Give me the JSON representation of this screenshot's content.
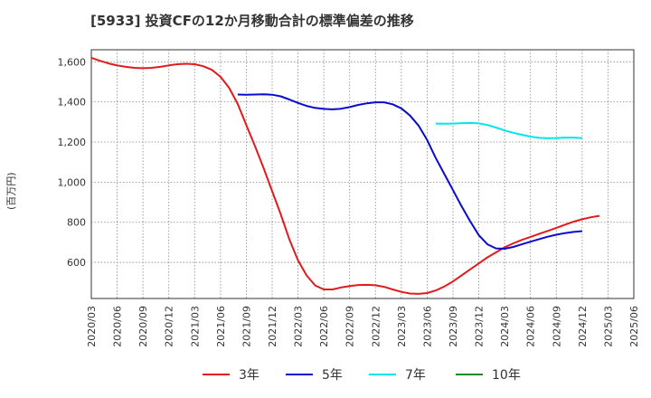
{
  "chart_data": {
    "type": "line",
    "title": "[5933]  投資CFの12か月移動合計の標準偏差の推移",
    "ylabel": "(百万円)",
    "xlabel": "",
    "ylim": [
      420,
      1660
    ],
    "yticks": [
      600,
      800,
      1000,
      1200,
      1400,
      1600
    ],
    "ytick_labels": [
      "600",
      "800",
      "1,000",
      "1,200",
      "1,400",
      "1,600"
    ],
    "x_categories": [
      "2020/03",
      "2020/06",
      "2020/09",
      "2020/12",
      "2021/03",
      "2021/06",
      "2021/09",
      "2021/12",
      "2022/03",
      "2022/06",
      "2022/09",
      "2022/12",
      "2023/03",
      "2023/06",
      "2023/09",
      "2023/12",
      "2024/03",
      "2024/06",
      "2024/09",
      "2024/12",
      "2025/03",
      "2025/06"
    ],
    "grid": true,
    "legend_position": "bottom",
    "series": [
      {
        "name": "3年",
        "color": "#e31a1c",
        "points": [
          {
            "x": "2020/03",
            "y": 1620
          },
          {
            "x": "2020/04",
            "y": 1605
          },
          {
            "x": "2020/05",
            "y": 1592
          },
          {
            "x": "2020/06",
            "y": 1582
          },
          {
            "x": "2020/07",
            "y": 1575
          },
          {
            "x": "2020/08",
            "y": 1570
          },
          {
            "x": "2020/09",
            "y": 1568
          },
          {
            "x": "2020/10",
            "y": 1570
          },
          {
            "x": "2020/11",
            "y": 1575
          },
          {
            "x": "2020/12",
            "y": 1582
          },
          {
            "x": "2021/01",
            "y": 1588
          },
          {
            "x": "2021/02",
            "y": 1590
          },
          {
            "x": "2021/03",
            "y": 1588
          },
          {
            "x": "2021/04",
            "y": 1578
          },
          {
            "x": "2021/05",
            "y": 1560
          },
          {
            "x": "2021/06",
            "y": 1525
          },
          {
            "x": "2021/07",
            "y": 1470
          },
          {
            "x": "2021/08",
            "y": 1390
          },
          {
            "x": "2021/09",
            "y": 1285
          },
          {
            "x": "2021/10",
            "y": 1180
          },
          {
            "x": "2021/11",
            "y": 1070
          },
          {
            "x": "2021/12",
            "y": 955
          },
          {
            "x": "2022/01",
            "y": 840
          },
          {
            "x": "2022/02",
            "y": 715
          },
          {
            "x": "2022/03",
            "y": 610
          },
          {
            "x": "2022/04",
            "y": 535
          },
          {
            "x": "2022/05",
            "y": 485
          },
          {
            "x": "2022/06",
            "y": 465
          },
          {
            "x": "2022/07",
            "y": 465
          },
          {
            "x": "2022/08",
            "y": 475
          },
          {
            "x": "2022/09",
            "y": 482
          },
          {
            "x": "2022/10",
            "y": 487
          },
          {
            "x": "2022/11",
            "y": 488
          },
          {
            "x": "2022/12",
            "y": 486
          },
          {
            "x": "2023/01",
            "y": 478
          },
          {
            "x": "2023/02",
            "y": 465
          },
          {
            "x": "2023/03",
            "y": 453
          },
          {
            "x": "2023/04",
            "y": 445
          },
          {
            "x": "2023/05",
            "y": 443
          },
          {
            "x": "2023/06",
            "y": 447
          },
          {
            "x": "2023/07",
            "y": 460
          },
          {
            "x": "2023/08",
            "y": 480
          },
          {
            "x": "2023/09",
            "y": 505
          },
          {
            "x": "2023/10",
            "y": 535
          },
          {
            "x": "2023/11",
            "y": 565
          },
          {
            "x": "2023/12",
            "y": 595
          },
          {
            "x": "2024/01",
            "y": 625
          },
          {
            "x": "2024/02",
            "y": 650
          },
          {
            "x": "2024/03",
            "y": 675
          },
          {
            "x": "2024/04",
            "y": 695
          },
          {
            "x": "2024/05",
            "y": 712
          },
          {
            "x": "2024/06",
            "y": 727
          },
          {
            "x": "2024/07",
            "y": 742
          },
          {
            "x": "2024/08",
            "y": 757
          },
          {
            "x": "2024/09",
            "y": 772
          },
          {
            "x": "2024/10",
            "y": 788
          },
          {
            "x": "2024/11",
            "y": 803
          },
          {
            "x": "2024/12",
            "y": 815
          },
          {
            "x": "2025/01",
            "y": 825
          },
          {
            "x": "2025/02",
            "y": 832
          }
        ]
      },
      {
        "name": "5年",
        "color": "#0a0ad0",
        "points": [
          {
            "x": "2021/08",
            "y": 1437
          },
          {
            "x": "2021/09",
            "y": 1436
          },
          {
            "x": "2021/10",
            "y": 1437
          },
          {
            "x": "2021/11",
            "y": 1438
          },
          {
            "x": "2021/12",
            "y": 1436
          },
          {
            "x": "2022/01",
            "y": 1428
          },
          {
            "x": "2022/02",
            "y": 1412
          },
          {
            "x": "2022/03",
            "y": 1395
          },
          {
            "x": "2022/04",
            "y": 1380
          },
          {
            "x": "2022/05",
            "y": 1370
          },
          {
            "x": "2022/06",
            "y": 1365
          },
          {
            "x": "2022/07",
            "y": 1363
          },
          {
            "x": "2022/08",
            "y": 1366
          },
          {
            "x": "2022/09",
            "y": 1374
          },
          {
            "x": "2022/10",
            "y": 1385
          },
          {
            "x": "2022/11",
            "y": 1393
          },
          {
            "x": "2022/12",
            "y": 1398
          },
          {
            "x": "2023/01",
            "y": 1398
          },
          {
            "x": "2023/02",
            "y": 1388
          },
          {
            "x": "2023/03",
            "y": 1368
          },
          {
            "x": "2023/04",
            "y": 1332
          },
          {
            "x": "2023/05",
            "y": 1282
          },
          {
            "x": "2023/06",
            "y": 1210
          },
          {
            "x": "2023/07",
            "y": 1120
          },
          {
            "x": "2023/08",
            "y": 1040
          },
          {
            "x": "2023/09",
            "y": 960
          },
          {
            "x": "2023/10",
            "y": 880
          },
          {
            "x": "2023/11",
            "y": 805
          },
          {
            "x": "2023/12",
            "y": 735
          },
          {
            "x": "2024/01",
            "y": 690
          },
          {
            "x": "2024/02",
            "y": 670
          },
          {
            "x": "2024/03",
            "y": 668
          },
          {
            "x": "2024/04",
            "y": 677
          },
          {
            "x": "2024/05",
            "y": 690
          },
          {
            "x": "2024/06",
            "y": 703
          },
          {
            "x": "2024/07",
            "y": 716
          },
          {
            "x": "2024/08",
            "y": 728
          },
          {
            "x": "2024/09",
            "y": 738
          },
          {
            "x": "2024/10",
            "y": 746
          },
          {
            "x": "2024/11",
            "y": 752
          },
          {
            "x": "2024/12",
            "y": 756
          }
        ]
      },
      {
        "name": "7年",
        "color": "#00e5ee",
        "points": [
          {
            "x": "2023/07",
            "y": 1292
          },
          {
            "x": "2023/08",
            "y": 1291
          },
          {
            "x": "2023/09",
            "y": 1292
          },
          {
            "x": "2023/10",
            "y": 1294
          },
          {
            "x": "2023/11",
            "y": 1295
          },
          {
            "x": "2023/12",
            "y": 1293
          },
          {
            "x": "2024/01",
            "y": 1285
          },
          {
            "x": "2024/02",
            "y": 1272
          },
          {
            "x": "2024/03",
            "y": 1258
          },
          {
            "x": "2024/04",
            "y": 1246
          },
          {
            "x": "2024/05",
            "y": 1236
          },
          {
            "x": "2024/06",
            "y": 1227
          },
          {
            "x": "2024/07",
            "y": 1221
          },
          {
            "x": "2024/08",
            "y": 1219
          },
          {
            "x": "2024/09",
            "y": 1220
          },
          {
            "x": "2024/10",
            "y": 1222
          },
          {
            "x": "2024/11",
            "y": 1222
          },
          {
            "x": "2024/12",
            "y": 1219
          }
        ]
      },
      {
        "name": "10年",
        "color": "#228b22",
        "points": []
      }
    ]
  }
}
